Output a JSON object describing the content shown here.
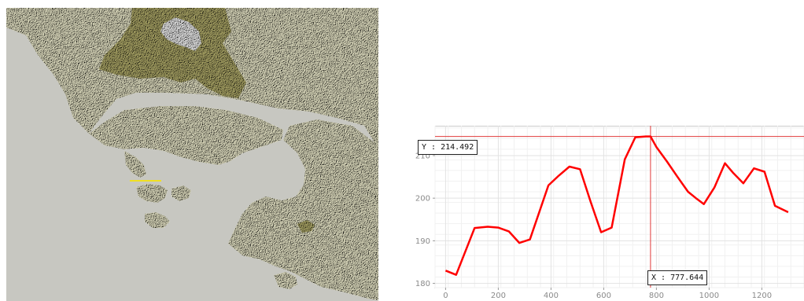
{
  "map": {
    "background_color": "#c7c7c1",
    "land_color": "#dedcbf",
    "highland_color": "#a9a466",
    "peak_color": "#e8e8e8",
    "profile_line_color": "#f0e020"
  },
  "readouts": {
    "y_text": "Y : 214.492",
    "x_text": "X : 777.644"
  },
  "chart_data": {
    "type": "line",
    "title": "",
    "xlabel": "",
    "ylabel": "",
    "xlim": [
      -40,
      1360
    ],
    "ylim": [
      179,
      217
    ],
    "x_ticks": [
      0,
      200,
      400,
      600,
      800,
      1000,
      1200
    ],
    "y_ticks": [
      180,
      190,
      200,
      210
    ],
    "grid": true,
    "line_color": "#ff0000",
    "crosshair_color": "#e03a3a",
    "crosshair": {
      "x": 777.644,
      "y": 214.492
    },
    "series": [
      {
        "x": [
          0,
          40,
          110,
          160,
          200,
          240,
          280,
          320,
          390,
          430,
          470,
          510,
          550,
          590,
          630,
          680,
          720,
          760,
          777.644,
          800,
          840,
          880,
          920,
          950,
          980,
          1020,
          1060,
          1090,
          1130,
          1170,
          1210,
          1250,
          1300
        ],
        "y": [
          183,
          182,
          193,
          193.3,
          193.1,
          192.2,
          189.5,
          190.3,
          203,
          205.3,
          207.4,
          206.8,
          199.2,
          192,
          193.1,
          209.1,
          214.3,
          214.5,
          214.492,
          212,
          208.6,
          205,
          201.5,
          200,
          198.6,
          202.5,
          208.2,
          206,
          203.5,
          207,
          206.2,
          198.2,
          196.7
        ]
      }
    ]
  }
}
